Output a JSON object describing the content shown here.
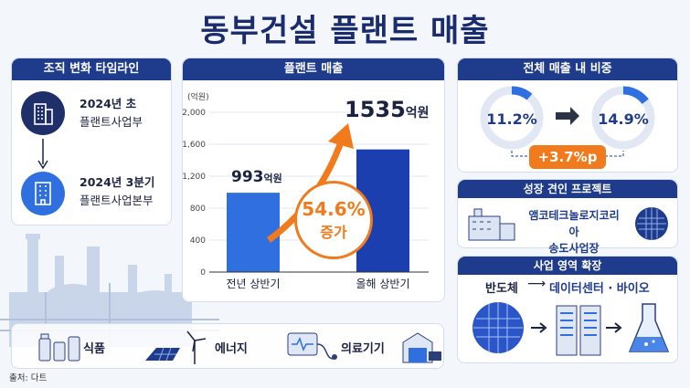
{
  "title": "동부건설 플랜트 매출",
  "timeline": {
    "header": "조직 변화 타임라인",
    "items": [
      {
        "line1": "2024년 초",
        "line2": "플랜트사업부"
      },
      {
        "line1": "2024년 3분기",
        "line2": "플랜트사업본부"
      }
    ]
  },
  "chart_panel": {
    "header": "플랜트 매출",
    "unit": "(억원)",
    "value_labels": [
      "993",
      "1535"
    ],
    "value_suffix": "억원",
    "growth_value": "54.6%",
    "growth_label": "증가"
  },
  "chart_data": {
    "type": "bar",
    "categories": [
      "전년 상반기",
      "올해 상반기"
    ],
    "values": [
      993,
      1535
    ],
    "title": "플랜트 매출",
    "ylabel": "(억원)",
    "ylim": [
      0,
      2000
    ],
    "yticks": [
      0,
      400,
      800,
      1200,
      1600,
      2000
    ],
    "ytick_labels": [
      "0",
      "400",
      "800",
      "1,200",
      "1,600",
      "2,000"
    ],
    "colors": [
      "#2f6fe0",
      "#1c3fb0"
    ]
  },
  "share": {
    "header": "전체 매출 내 비중",
    "before": "11.2%",
    "after": "14.9%",
    "delta": "+3.7%p",
    "before_fraction": 0.112,
    "after_fraction": 0.149
  },
  "growth_project": {
    "header": "성장 견인 프로젝트",
    "line1": "앰코테크놀로지코리아",
    "line2": "송도사업장"
  },
  "expansion": {
    "header": "사업 영역 확장",
    "from": "반도체",
    "to": "데이터센터 · 바이오"
  },
  "industries": [
    "식품",
    "에너지",
    "의료기기"
  ],
  "source": "출처: 다트",
  "colors": {
    "navy": "#1f3b8c",
    "orange": "#f07a1c",
    "blue": "#2f6fe0"
  }
}
